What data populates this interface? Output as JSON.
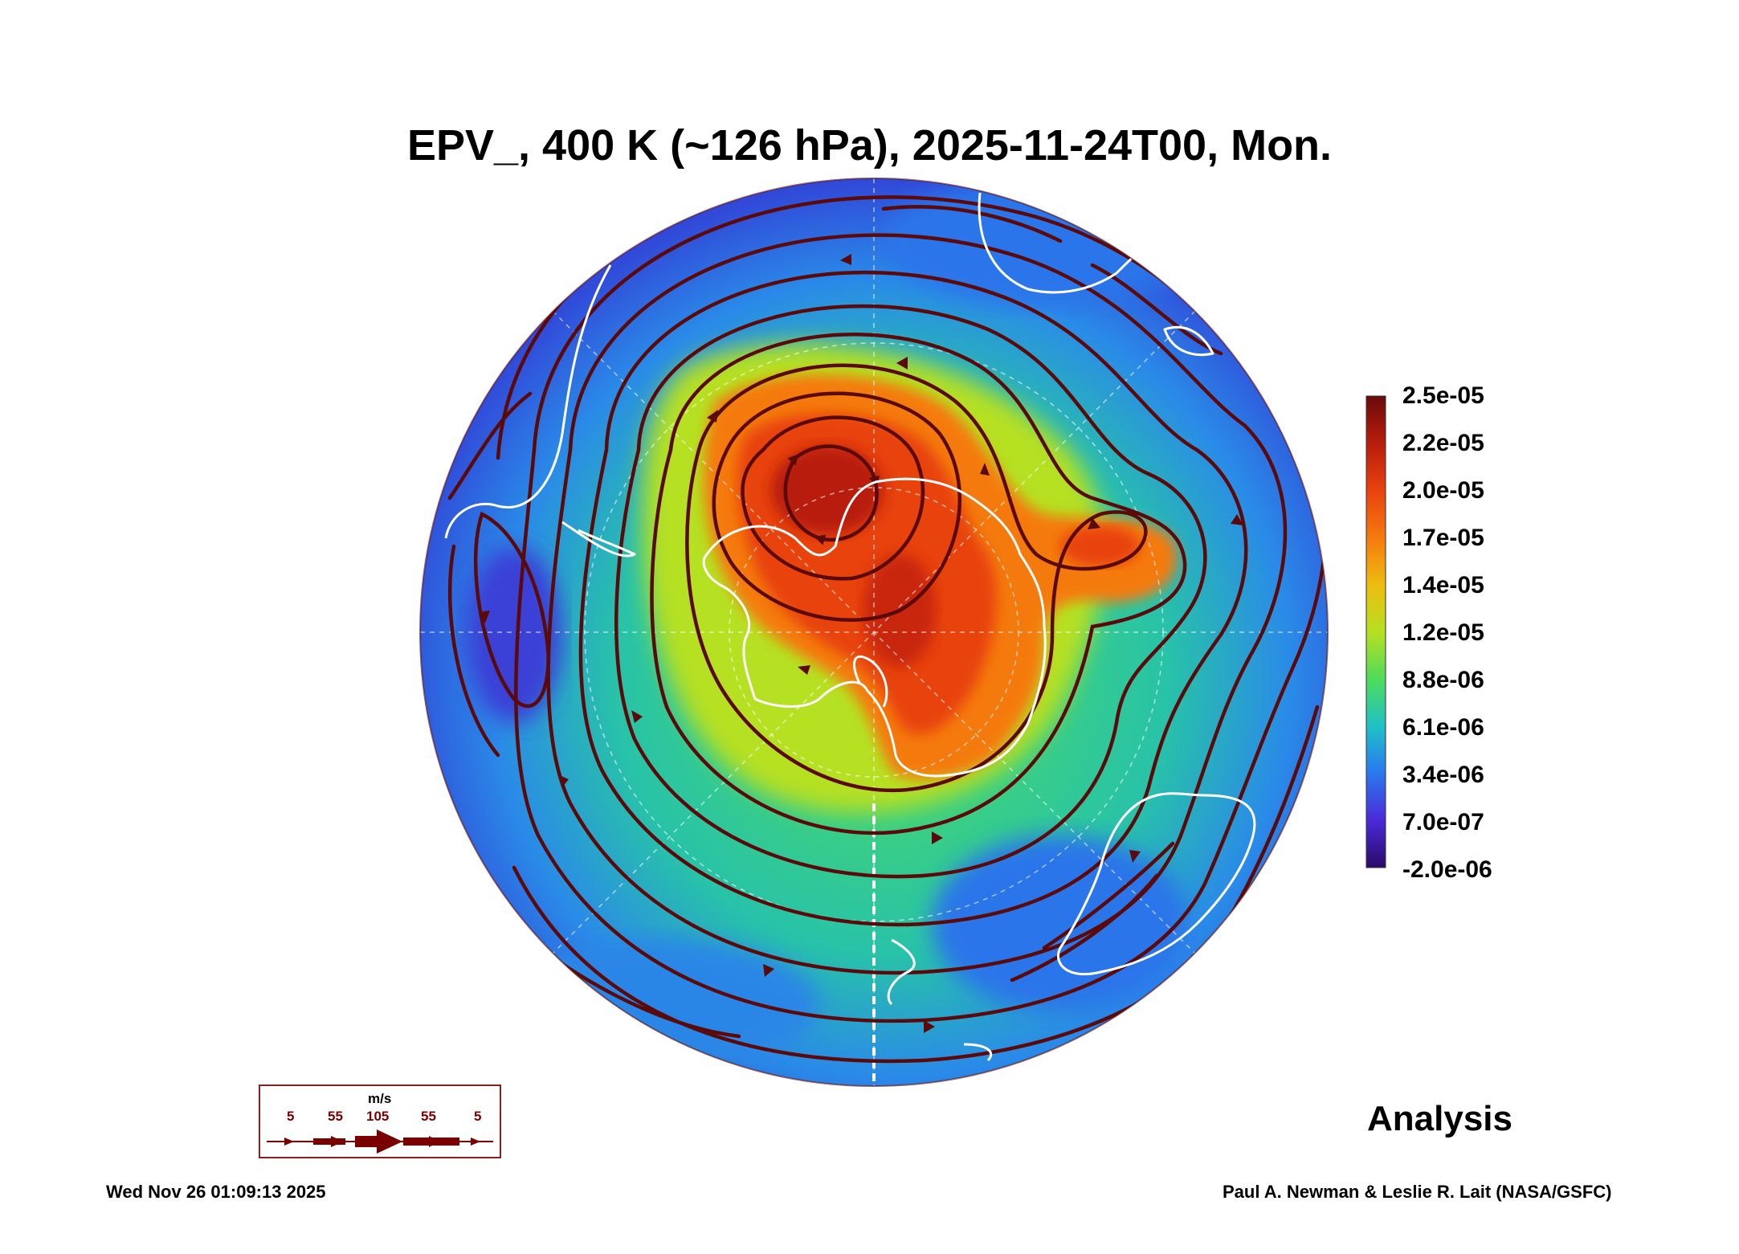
{
  "title": "EPV_, 400 K (~126 hPa), 2025-11-24T00, Mon.",
  "colorbar": {
    "labels": [
      "2.5e-05",
      "2.2e-05",
      "2.0e-05",
      "1.7e-05",
      "1.4e-05",
      "1.2e-05",
      "8.8e-06",
      "6.1e-06",
      "3.4e-06",
      "7.0e-07",
      "-2.0e-06"
    ],
    "colors": [
      "#6a0a0a",
      "#b81d0c",
      "#e8420e",
      "#f57a0e",
      "#eebc10",
      "#b6e020",
      "#4fdc5a",
      "#1fc1c6",
      "#2a78ef",
      "#4a2ad8",
      "#2a0a66"
    ]
  },
  "wind_legend": {
    "unit": "m/s",
    "speeds": [
      "5",
      "55",
      "105",
      "55",
      "5"
    ],
    "color": "#7a0000"
  },
  "stream_color": "#5a0a0a",
  "coast_color": "#ffffff",
  "analysis_label": "Analysis",
  "timestamp": "Wed Nov 26 01:09:13 2025",
  "credit": "Paul A. Newman & Leslie R. Lait (NASA/GSFC)"
}
